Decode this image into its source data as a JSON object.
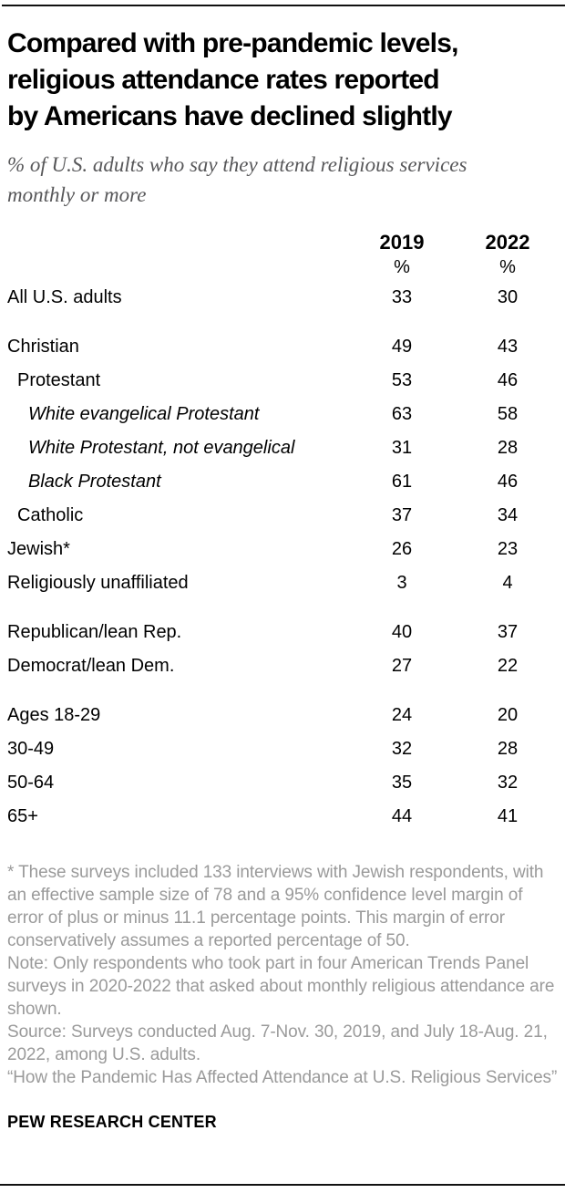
{
  "header": {
    "title_lines": [
      "Compared with pre-pandemic levels,",
      "religious attendance rates reported",
      "by Americans have declined slightly"
    ],
    "subtitle_lines": [
      "% of U.S. adults who say they attend religious services",
      "monthly or more"
    ]
  },
  "chart_data": {
    "type": "table",
    "title": "Compared with pre-pandemic levels, religious attendance rates reported by Americans have declined slightly",
    "subtitle": "% of U.S. adults who say they attend religious services monthly or more",
    "columns": [
      "2019",
      "2022"
    ],
    "unit": "%",
    "rows": [
      {
        "label": "All U.S. adults",
        "values": [
          33,
          30
        ],
        "indent": 0,
        "italic": false,
        "group_start": false
      },
      {
        "label": "Christian",
        "values": [
          49,
          43
        ],
        "indent": 0,
        "italic": false,
        "group_start": true
      },
      {
        "label": "Protestant",
        "values": [
          53,
          46
        ],
        "indent": 1,
        "italic": false,
        "group_start": false
      },
      {
        "label": "White evangelical Protestant",
        "values": [
          63,
          58
        ],
        "indent": 2,
        "italic": true,
        "group_start": false
      },
      {
        "label": "White Protestant, not evangelical",
        "values": [
          31,
          28
        ],
        "indent": 2,
        "italic": true,
        "group_start": false
      },
      {
        "label": "Black Protestant",
        "values": [
          61,
          46
        ],
        "indent": 2,
        "italic": true,
        "group_start": false
      },
      {
        "label": "Catholic",
        "values": [
          37,
          34
        ],
        "indent": 1,
        "italic": false,
        "group_start": false
      },
      {
        "label": "Jewish*",
        "values": [
          26,
          23
        ],
        "indent": 0,
        "italic": false,
        "group_start": false
      },
      {
        "label": "Religiously unaffiliated",
        "values": [
          3,
          4
        ],
        "indent": 0,
        "italic": false,
        "group_start": false
      },
      {
        "label": "Republican/lean Rep.",
        "values": [
          40,
          37
        ],
        "indent": 0,
        "italic": false,
        "group_start": true
      },
      {
        "label": "Democrat/lean Dem.",
        "values": [
          27,
          22
        ],
        "indent": 0,
        "italic": false,
        "group_start": false
      },
      {
        "label": "Ages 18-29",
        "values": [
          24,
          20
        ],
        "indent": 0,
        "italic": false,
        "group_start": true
      },
      {
        "label": "30-49",
        "values": [
          32,
          28
        ],
        "indent": 0,
        "italic": false,
        "group_start": false
      },
      {
        "label": "50-64",
        "values": [
          35,
          32
        ],
        "indent": 0,
        "italic": false,
        "group_start": false
      },
      {
        "label": "65+",
        "values": [
          44,
          41
        ],
        "indent": 0,
        "italic": false,
        "group_start": false
      }
    ]
  },
  "notes": {
    "asterisk_note": "* These surveys included 133 interviews with Jewish respondents, with an effective sample size of 78 and a 95% confidence level margin of error of plus or minus 11.1 percentage points. This margin of error conservatively assumes a reported percentage of 50.",
    "methodology_note": "Note: Only respondents who took part in four American Trends Panel surveys in 2020-2022 that asked about monthly religious attendance are shown.",
    "source_note": "Source: Surveys conducted Aug. 7-Nov. 30, 2019, and July 18-Aug. 21, 2022, among U.S. adults.",
    "report_title": "“How the Pandemic Has Affected Attendance at U.S. Religious Services”"
  },
  "footer": {
    "brand": "PEW RESEARCH CENTER"
  },
  "colors": {
    "title_text": "#000000",
    "subtitle_text": "#58585a",
    "note_text": "#9a9a9a",
    "body_text": "#000000",
    "rule": "#111111",
    "background": "#ffffff"
  }
}
